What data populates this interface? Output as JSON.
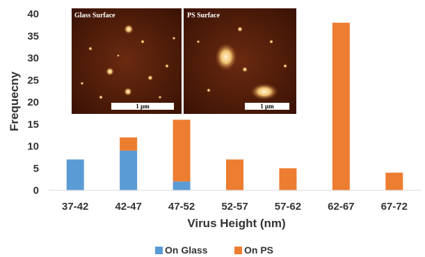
{
  "chart_data": {
    "type": "bar",
    "stacked": true,
    "categories": [
      "37-42",
      "42-47",
      "47-52",
      "52-57",
      "57-62",
      "62-67",
      "67-72"
    ],
    "series": [
      {
        "name": "On Glass",
        "color": "#5b9bd5",
        "values": [
          7,
          9,
          2,
          0,
          0,
          0,
          0
        ]
      },
      {
        "name": "On PS",
        "color": "#ed7d31",
        "values": [
          0,
          3,
          14,
          7,
          5,
          38,
          4
        ]
      }
    ],
    "xlabel": "Virus Height (nm)",
    "ylabel": "Frequecny",
    "ylim": [
      0,
      40
    ],
    "yticks": [
      0,
      5,
      10,
      15,
      20,
      25,
      30,
      35,
      40
    ],
    "grid": false,
    "legend": "bottom"
  },
  "insets": [
    {
      "label": "Glass Surface",
      "scale_label": "1 µm"
    },
    {
      "label": "PS Surface",
      "scale_label": "1 µm"
    }
  ]
}
